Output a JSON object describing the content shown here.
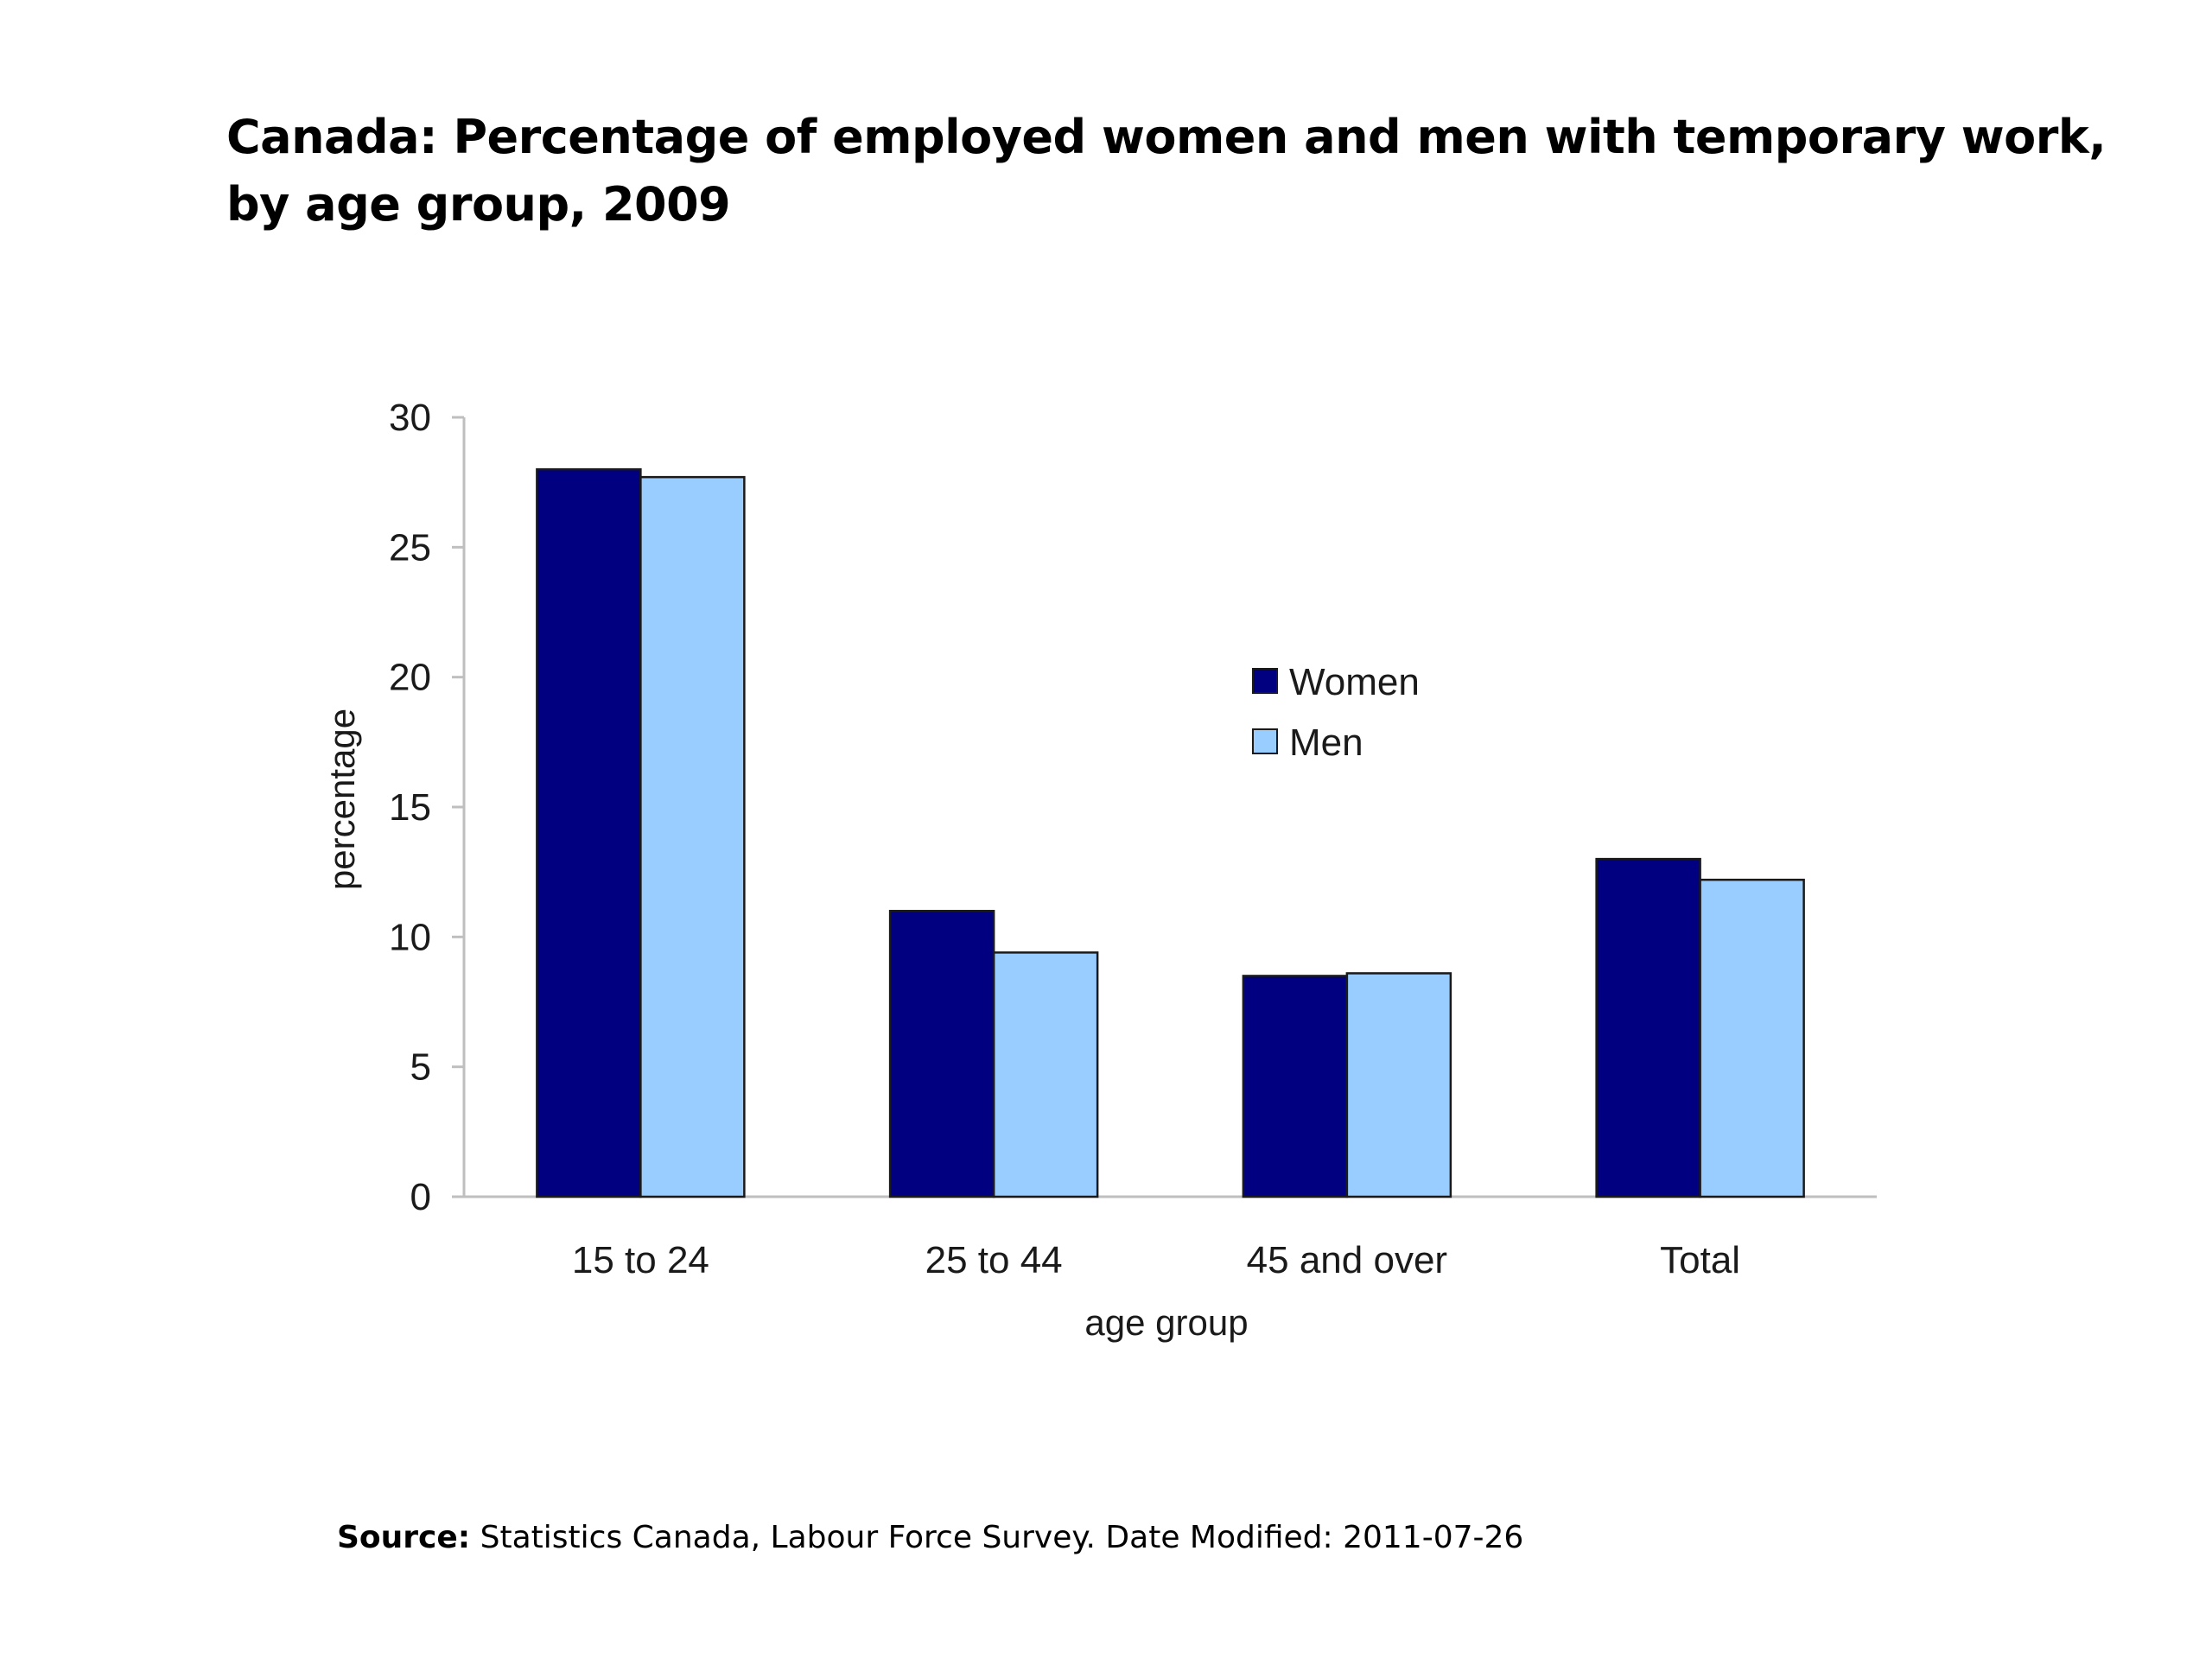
{
  "title": "Canada: Percentage of employed women and men with temporary work, by age group, 2009",
  "source": {
    "label": "Source:",
    "text": "Statistics Canada, Labour Force Survey. Date Modified: 2011-07-26"
  },
  "colors": {
    "women": "#000080",
    "men": "#99ccff",
    "axis": "#bfbfbf",
    "bar_outline": "#1a1a1a"
  },
  "chart_data": {
    "type": "bar",
    "title": "Canada: Percentage of employed women and men with temporary work, by age group, 2009",
    "xlabel": "age group",
    "ylabel": "percentage",
    "categories": [
      "15 to 24",
      "25 to 44",
      "45 and over",
      "Total"
    ],
    "series": [
      {
        "name": "Women",
        "values": [
          28.0,
          11.0,
          8.5,
          13.0
        ]
      },
      {
        "name": "Men",
        "values": [
          27.7,
          9.4,
          8.6,
          12.2
        ]
      }
    ],
    "ylim": [
      0,
      30
    ],
    "yticks": [
      "0",
      "5",
      "10",
      "15",
      "20",
      "25",
      "30"
    ],
    "grid": false,
    "legend_position": "center-right"
  }
}
